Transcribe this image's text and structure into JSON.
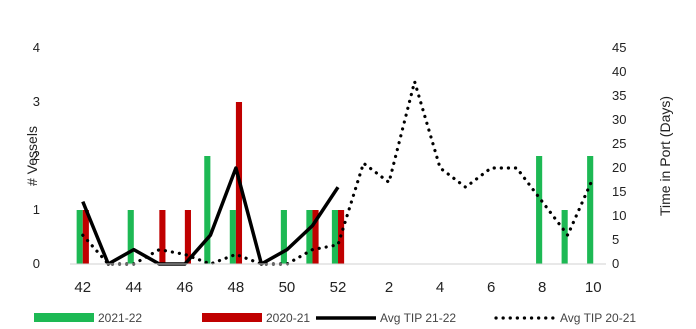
{
  "chart_data": {
    "type": "bar",
    "title": "",
    "xlabel": "",
    "ylabel": "# Vessels",
    "y2label": "Time in Port (Days)",
    "ylim": [
      0,
      4
    ],
    "y2lim": [
      0,
      45
    ],
    "y_ticks": [
      "0",
      "1",
      "2",
      "3",
      "4"
    ],
    "y2_ticks": [
      "0",
      "5",
      "10",
      "15",
      "20",
      "25",
      "30",
      "35",
      "40",
      "45"
    ],
    "x": [
      42,
      43,
      44,
      45,
      46,
      47,
      48,
      49,
      50,
      51,
      52,
      1,
      2,
      3,
      4,
      5,
      6,
      7,
      8,
      9,
      10
    ],
    "x_tick_labels": [
      "42",
      "44",
      "46",
      "48",
      "50",
      "52",
      "2",
      "4",
      "6",
      "8",
      "10"
    ],
    "grid": false,
    "legend_position": "bottom",
    "series": [
      {
        "name": "2021-22",
        "kind": "bar",
        "axis": "left",
        "color": "#1db954",
        "values": [
          1,
          0,
          1,
          0,
          0,
          2,
          1,
          0,
          1,
          1,
          1,
          0,
          0,
          0,
          0,
          0,
          0,
          0,
          2,
          1,
          2
        ]
      },
      {
        "name": "2020-21",
        "kind": "bar",
        "axis": "left",
        "color": "#c00000",
        "values": [
          1,
          0,
          0,
          1,
          1,
          0,
          3,
          0,
          0,
          1,
          1,
          0,
          0,
          0,
          0,
          0,
          0,
          0,
          0,
          0,
          0
        ]
      },
      {
        "name": "Avg TIP 21-22",
        "kind": "line",
        "style": "solid",
        "axis": "right",
        "color": "#000000",
        "values": [
          13,
          0,
          3,
          0,
          0,
          6,
          20,
          0,
          3,
          8,
          16,
          null,
          null,
          null,
          null,
          null,
          null,
          null,
          null,
          null,
          null
        ]
      },
      {
        "name": "Avg TIP 20-21",
        "kind": "line",
        "style": "dotted",
        "axis": "right",
        "color": "#000000",
        "values": [
          6,
          0,
          0,
          3,
          2,
          0,
          2,
          0,
          0,
          3,
          4,
          21,
          17,
          38,
          20,
          16,
          20,
          20,
          13,
          6,
          18
        ]
      }
    ]
  }
}
